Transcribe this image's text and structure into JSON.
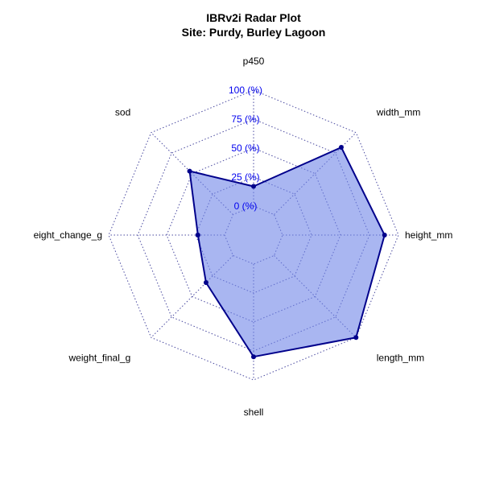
{
  "chart_data": {
    "type": "radar",
    "title": "IBRv2i Radar Plot",
    "subtitle": "Site: Purdy, Burley Lagoon",
    "axes": [
      "p450",
      "width_mm",
      "height_mm",
      "length_mm",
      "shell",
      "weight_final_g",
      "eight_change_g",
      "sod"
    ],
    "values": [
      17,
      82,
      88,
      100,
      80,
      33,
      23,
      53
    ],
    "range": [
      0,
      100
    ],
    "tick_values": [
      0,
      25,
      50,
      75,
      100
    ],
    "tick_labels": [
      "0 (%)",
      "25 (%)",
      "50 (%)",
      "75 (%)",
      "100 (%)"
    ],
    "series_name": "Purdy, Burley Lagoon",
    "colors": {
      "fill": "#6f86e8",
      "line": "#00008b",
      "grid": "#4a4aa0",
      "tick_text": "#0000ee"
    }
  }
}
